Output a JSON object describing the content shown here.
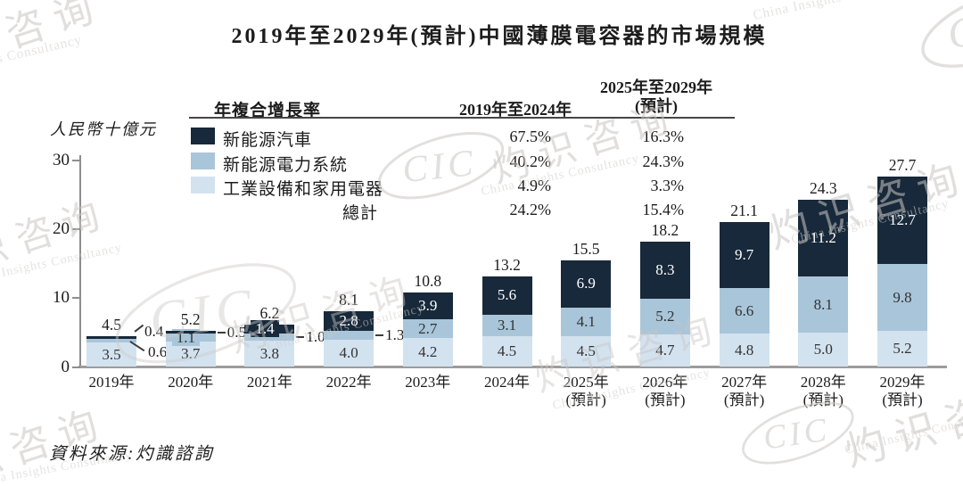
{
  "title": "2019年至2029年(預計)中國薄膜電容器的市場規模",
  "source": "資料來源:灼識諮詢",
  "cagr_table": {
    "metric_header": "年複合增長率",
    "period1_header": "2019年至2024年",
    "period2_header_line1": "2025年至2029年",
    "period2_header_line2": "(預計)",
    "rows": [
      {
        "label": "新能源汽車",
        "swatch": "#17293a",
        "period1": "67.5%",
        "period2": "16.3%"
      },
      {
        "label": "新能源電力系統",
        "swatch": "#a9c5d9",
        "period1": "40.2%",
        "period2": "24.3%"
      },
      {
        "label": "工業設備和家用電器",
        "swatch": "#d3e2ef",
        "period1": "4.9%",
        "period2": "3.3%"
      },
      {
        "label": "總計",
        "swatch": "",
        "period1": "24.2%",
        "period2": "15.4%"
      }
    ]
  },
  "watermark": {
    "brand_abbr": "CIC",
    "brand_cn": "灼识咨询",
    "brand_en": "China Insights Consultancy"
  },
  "chart_data": {
    "type": "bar",
    "subtype": "stacked-vertical",
    "title": "2019年至2029年(預計)中國薄膜電容器的市場規模",
    "ylabel": "人民幣十億元",
    "ylim": [
      0,
      30
    ],
    "yticks": [
      0,
      10,
      20,
      30
    ],
    "grid": false,
    "legend_position": "top-left-table",
    "categories": [
      {
        "label": "2019年"
      },
      {
        "label": "2020年"
      },
      {
        "label": "2021年"
      },
      {
        "label": "2022年"
      },
      {
        "label": "2023年"
      },
      {
        "label": "2024年"
      },
      {
        "label": "2025年",
        "note": "(預計)"
      },
      {
        "label": "2026年",
        "note": "(預計)"
      },
      {
        "label": "2027年",
        "note": "(預計)"
      },
      {
        "label": "2028年",
        "note": "(預計)"
      },
      {
        "label": "2029年",
        "note": "(預計)"
      }
    ],
    "series": [
      {
        "name": "新能源汽車",
        "key": "new-energy-vehicles",
        "color": "#17293a",
        "label_color": "#ffffff",
        "values": [
          0.4,
          0.5,
          1.4,
          2.8,
          3.9,
          5.6,
          6.9,
          8.3,
          9.7,
          11.2,
          12.7
        ],
        "label_pos": [
          "callout-up",
          "out",
          "in",
          "in",
          "in",
          "in",
          "in",
          "in",
          "in",
          "in",
          "in"
        ]
      },
      {
        "name": "新能源電力系統",
        "key": "new-energy-power-systems",
        "color": "#a9c5d9",
        "label_color": "#333333",
        "values": [
          0.6,
          1.1,
          1.0,
          1.3,
          2.7,
          3.1,
          4.1,
          5.2,
          6.6,
          8.1,
          9.8
        ],
        "label_pos": [
          "callout-down",
          "in",
          "out",
          "out",
          "in",
          "in",
          "in",
          "in",
          "in",
          "in",
          "in"
        ]
      },
      {
        "name": "工業設備和家用電器",
        "key": "industrial-and-home-appliances",
        "color": "#d3e2ef",
        "label_color": "#333333",
        "values": [
          3.5,
          3.7,
          3.8,
          4.0,
          4.2,
          4.5,
          4.5,
          4.7,
          4.8,
          5.0,
          5.2
        ],
        "label_pos": [
          "in",
          "in",
          "in",
          "in",
          "in",
          "in",
          "in",
          "in",
          "in",
          "in",
          "in"
        ]
      }
    ],
    "totals": [
      4.5,
      5.2,
      6.2,
      8.1,
      10.8,
      13.2,
      15.5,
      18.2,
      21.1,
      24.3,
      27.7
    ],
    "cagr_2019_2024": {
      "新能源汽車": "67.5%",
      "新能源電力系統": "40.2%",
      "工業設備和家用電器": "4.9%",
      "總計": "24.2%"
    },
    "cagr_2025_2029": {
      "新能源汽車": "16.3%",
      "新能源電力系統": "24.3%",
      "工業設備和家用電器": "3.3%",
      "總計": "15.4%"
    }
  }
}
